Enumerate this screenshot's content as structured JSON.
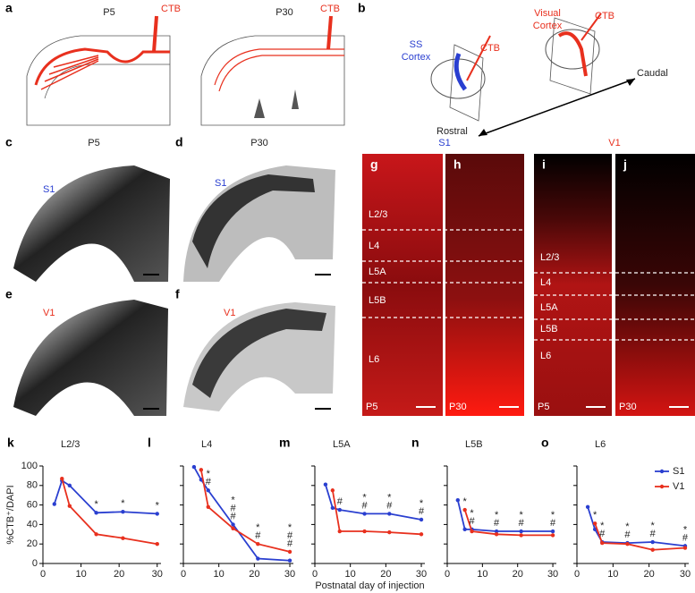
{
  "schematic_a": {
    "letter": "a",
    "left_age": "P5",
    "right_age": "P30",
    "tracer_left": "CTB",
    "tracer_right": "CTB"
  },
  "schematic_b": {
    "letter": "b",
    "ss_line1": "SS",
    "ss_line2": "Cortex",
    "visual_line1": "Visual",
    "visual_line2": "Cortex",
    "tracer_ss": "CTB",
    "tracer_visual": "CTB",
    "caudal": "Caudal",
    "rostral": "Rostral"
  },
  "sections": [
    {
      "letter": "c",
      "age": "P5",
      "area": "S1"
    },
    {
      "letter": "d",
      "age": "P30",
      "area": "S1"
    },
    {
      "letter": "e",
      "area": "V1"
    },
    {
      "letter": "f",
      "area": "V1"
    }
  ],
  "confocal": {
    "s1_header": "S1",
    "v1_header": "V1",
    "panels": [
      {
        "letter": "g",
        "age": "P5",
        "layers": [
          "L2/3",
          "L4",
          "L5A",
          "L5B",
          "L6"
        ]
      },
      {
        "letter": "h",
        "age": "P30"
      },
      {
        "letter": "i",
        "age": "P5",
        "layers": [
          "L2/3",
          "L4",
          "L5A",
          "L5B",
          "L6"
        ]
      },
      {
        "letter": "j",
        "age": "P30"
      }
    ]
  },
  "chart_data": [
    {
      "type": "line",
      "panel": "k",
      "title": "L2/3",
      "ylabel": "%CTB⁺/DAPI",
      "ytick_labels": true,
      "xlim": [
        0,
        31
      ],
      "xticks": [
        0,
        10,
        20,
        30
      ],
      "ylim": [
        0,
        100
      ],
      "yticks": [
        0,
        20,
        40,
        60,
        80,
        100
      ],
      "series": [
        {
          "name": "S1",
          "color": "#2a3fd0",
          "x": [
            3,
            5,
            7,
            14,
            21,
            30
          ],
          "values": [
            61,
            85,
            80,
            52,
            53,
            51
          ]
        },
        {
          "name": "V1",
          "color": "#e8301e",
          "x": [
            5,
            7,
            14,
            21,
            30
          ],
          "values": [
            87,
            59,
            30,
            26,
            20
          ]
        }
      ],
      "annotations": [
        {
          "x": 14,
          "labels": [
            "*"
          ]
        },
        {
          "x": 21,
          "labels": [
            "*"
          ]
        },
        {
          "x": 30,
          "labels": [
            "*"
          ]
        }
      ]
    },
    {
      "type": "line",
      "panel": "l",
      "title": "L4",
      "ytick_labels": false,
      "xlim": [
        0,
        31
      ],
      "xticks": [
        0,
        10,
        20,
        30
      ],
      "ylim": [
        0,
        100
      ],
      "yticks": [
        0,
        20,
        40,
        60,
        80,
        100
      ],
      "series": [
        {
          "name": "S1",
          "color": "#2a3fd0",
          "x": [
            3,
            5,
            7,
            14,
            21,
            30
          ],
          "values": [
            99,
            86,
            75,
            40,
            5,
            3
          ]
        },
        {
          "name": "V1",
          "color": "#e8301e",
          "x": [
            5,
            7,
            14,
            21,
            30
          ],
          "values": [
            96,
            58,
            36,
            20,
            12
          ]
        }
      ],
      "annotations": [
        {
          "x": 7,
          "labels": [
            "*",
            "#"
          ]
        },
        {
          "x": 14,
          "labels": [
            "*",
            "#",
            "#"
          ]
        },
        {
          "x": 21,
          "labels": [
            "*",
            "#"
          ]
        },
        {
          "x": 30,
          "labels": [
            "*",
            "#",
            "#"
          ]
        }
      ]
    },
    {
      "type": "line",
      "panel": "m",
      "title": "L5A",
      "xlabel": "Postnatal day of injection",
      "ytick_labels": false,
      "xlim": [
        0,
        31
      ],
      "xticks": [
        0,
        10,
        20,
        30
      ],
      "ylim": [
        0,
        100
      ],
      "yticks": [
        0,
        20,
        40,
        60,
        80,
        100
      ],
      "series": [
        {
          "name": "S1",
          "color": "#2a3fd0",
          "x": [
            3,
            5,
            7,
            14,
            21,
            30
          ],
          "values": [
            81,
            57,
            55,
            51,
            51,
            45
          ]
        },
        {
          "name": "V1",
          "color": "#e8301e",
          "x": [
            5,
            7,
            14,
            21,
            30
          ],
          "values": [
            75,
            33,
            33,
            32,
            30
          ]
        }
      ],
      "annotations": [
        {
          "x": 7,
          "labels": [
            "#"
          ]
        },
        {
          "x": 14,
          "labels": [
            "*",
            "#"
          ]
        },
        {
          "x": 21,
          "labels": [
            "*",
            "#"
          ]
        },
        {
          "x": 30,
          "labels": [
            "*",
            "#"
          ]
        }
      ]
    },
    {
      "type": "line",
      "panel": "n",
      "title": "L5B",
      "ytick_labels": false,
      "xlim": [
        0,
        31
      ],
      "xticks": [
        0,
        10,
        20,
        30
      ],
      "ylim": [
        0,
        100
      ],
      "yticks": [
        0,
        20,
        40,
        60,
        80,
        100
      ],
      "series": [
        {
          "name": "S1",
          "color": "#2a3fd0",
          "x": [
            3,
            5,
            7,
            14,
            21,
            30
          ],
          "values": [
            65,
            35,
            35,
            33,
            33,
            33
          ]
        },
        {
          "name": "V1",
          "color": "#e8301e",
          "x": [
            5,
            7,
            14,
            21,
            30
          ],
          "values": [
            55,
            33,
            30,
            29,
            29
          ]
        }
      ],
      "annotations": [
        {
          "x": 5,
          "labels": [
            "*"
          ]
        },
        {
          "x": 7,
          "labels": [
            "*",
            "#"
          ]
        },
        {
          "x": 14,
          "labels": [
            "*",
            "#"
          ]
        },
        {
          "x": 21,
          "labels": [
            "*",
            "#"
          ]
        },
        {
          "x": 30,
          "labels": [
            "*",
            "#"
          ]
        }
      ]
    },
    {
      "type": "line",
      "panel": "o",
      "title": "L6",
      "ytick_labels": false,
      "legend": "upper right",
      "xlim": [
        0,
        31
      ],
      "xticks": [
        0,
        10,
        20,
        30
      ],
      "ylim": [
        0,
        100
      ],
      "yticks": [
        0,
        20,
        40,
        60,
        80,
        100
      ],
      "series": [
        {
          "name": "S1",
          "color": "#2a3fd0",
          "x": [
            3,
            5,
            7,
            14,
            21,
            30
          ],
          "values": [
            58,
            35,
            22,
            21,
            22,
            18
          ]
        },
        {
          "name": "V1",
          "color": "#e8301e",
          "x": [
            5,
            7,
            14,
            21,
            30
          ],
          "values": [
            41,
            21,
            20,
            14,
            16
          ]
        }
      ],
      "annotations": [
        {
          "x": 5,
          "labels": [
            "*"
          ]
        },
        {
          "x": 7,
          "labels": [
            "*",
            "#"
          ]
        },
        {
          "x": 14,
          "labels": [
            "*",
            "#"
          ]
        },
        {
          "x": 21,
          "labels": [
            "*",
            "#"
          ]
        },
        {
          "x": 30,
          "labels": [
            "*",
            "#"
          ]
        }
      ]
    }
  ]
}
